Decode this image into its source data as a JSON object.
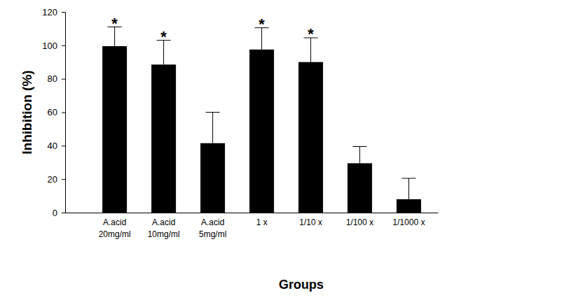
{
  "chart_data": {
    "type": "bar",
    "x_label": "Groups",
    "y_label": "Inhibition (%)",
    "categories": [
      "A.acid\n20mg/ml",
      "A.acid\n10mg/ml",
      "A.acid\n5mg/ml",
      "1 x",
      "1/10 x",
      "1/100 x",
      "1/1000 x"
    ],
    "values": [
      99.5,
      88.5,
      41.5,
      97.5,
      90,
      29.5,
      8
    ],
    "errors": [
      11.5,
      14.5,
      18.5,
      13,
      14.5,
      10,
      12.5
    ],
    "significance": [
      "*",
      "*",
      null,
      "*",
      "*",
      null,
      null
    ],
    "color": "#000000",
    "ylim": [
      0,
      120
    ],
    "yticks": [
      0,
      20,
      40,
      60,
      80,
      100,
      120
    ],
    "grid": false
  }
}
